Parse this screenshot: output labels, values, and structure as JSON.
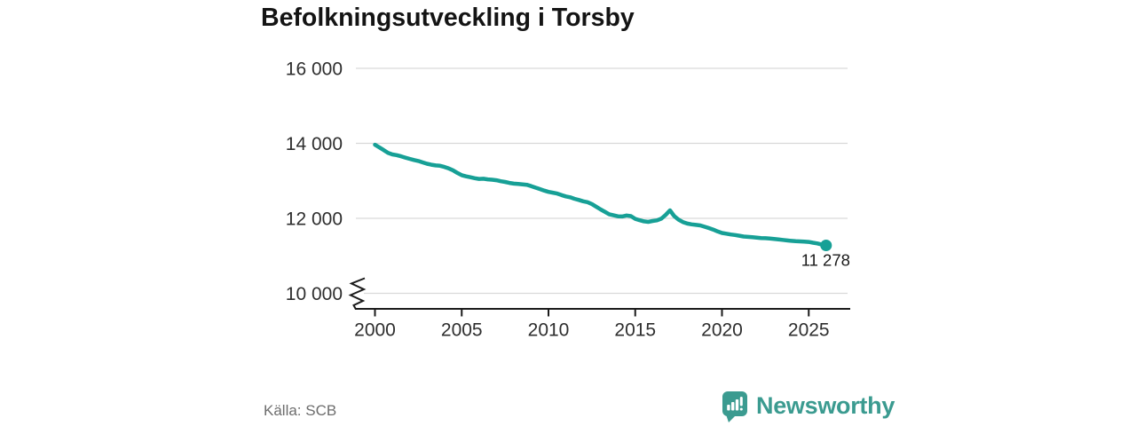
{
  "page": {
    "title": "Befolkningsutveckling i Torsby"
  },
  "chart_data": {
    "type": "line",
    "title": "Befolkningsutveckling i Torsby",
    "xlabel": "",
    "ylabel": "",
    "ylim": [
      10000,
      16000
    ],
    "xlim": [
      1998.9,
      2027.4
    ],
    "y_axis_break": true,
    "grid": "horizontal",
    "legend": "none",
    "line_color": "#17a096",
    "x_ticks": [
      {
        "value": 2000,
        "label": "2000"
      },
      {
        "value": 2005,
        "label": "2005"
      },
      {
        "value": 2010,
        "label": "2010"
      },
      {
        "value": 2015,
        "label": "2015"
      },
      {
        "value": 2020,
        "label": "2020"
      },
      {
        "value": 2025,
        "label": "2025"
      }
    ],
    "y_ticks": [
      {
        "value": 16000,
        "label": "16 000"
      },
      {
        "value": 14000,
        "label": "14 000"
      },
      {
        "value": 12000,
        "label": "12 000"
      },
      {
        "value": 10000,
        "label": "10 000"
      }
    ],
    "x": [
      2000,
      2000.25,
      2000.5,
      2000.75,
      2001,
      2001.25,
      2001.5,
      2001.75,
      2002,
      2002.25,
      2002.5,
      2002.75,
      2003,
      2003.25,
      2003.5,
      2003.75,
      2004,
      2004.25,
      2004.5,
      2004.75,
      2005,
      2005.25,
      2005.5,
      2005.75,
      2006,
      2006.25,
      2006.5,
      2006.75,
      2007,
      2007.25,
      2007.5,
      2007.75,
      2008,
      2008.25,
      2008.5,
      2008.75,
      2009,
      2009.25,
      2009.5,
      2009.75,
      2010,
      2010.25,
      2010.5,
      2010.75,
      2011,
      2011.25,
      2011.5,
      2011.75,
      2012,
      2012.25,
      2012.5,
      2012.75,
      2013,
      2013.25,
      2013.5,
      2013.75,
      2014,
      2014.25,
      2014.5,
      2014.75,
      2015,
      2015.25,
      2015.5,
      2015.75,
      2016,
      2016.25,
      2016.5,
      2016.75,
      2017,
      2017.25,
      2017.5,
      2017.75,
      2018,
      2018.25,
      2018.5,
      2018.75,
      2019,
      2019.25,
      2019.5,
      2019.75,
      2020,
      2020.25,
      2020.5,
      2020.75,
      2021,
      2021.25,
      2021.5,
      2021.75,
      2022,
      2022.25,
      2022.5,
      2022.75,
      2023,
      2023.25,
      2023.5,
      2023.75,
      2024,
      2024.25,
      2024.5,
      2024.75,
      2025,
      2025.25,
      2025.5,
      2025.75,
      2026
    ],
    "y": [
      13962,
      13890,
      13820,
      13745,
      13705,
      13685,
      13655,
      13620,
      13585,
      13555,
      13530,
      13490,
      13455,
      13430,
      13410,
      13400,
      13370,
      13330,
      13280,
      13210,
      13150,
      13120,
      13095,
      13070,
      13050,
      13055,
      13040,
      13030,
      13015,
      12990,
      12970,
      12945,
      12925,
      12915,
      12905,
      12895,
      12860,
      12820,
      12780,
      12740,
      12705,
      12685,
      12660,
      12620,
      12585,
      12560,
      12520,
      12490,
      12455,
      12430,
      12380,
      12310,
      12240,
      12175,
      12110,
      12080,
      12055,
      12050,
      12075,
      12060,
      11985,
      11950,
      11920,
      11905,
      11930,
      11945,
      11990,
      12090,
      12213,
      12060,
      11965,
      11900,
      11860,
      11840,
      11825,
      11810,
      11775,
      11740,
      11700,
      11650,
      11610,
      11590,
      11570,
      11555,
      11535,
      11515,
      11505,
      11495,
      11485,
      11475,
      11470,
      11460,
      11450,
      11440,
      11425,
      11410,
      11400,
      11390,
      11385,
      11380,
      11370,
      11350,
      11330,
      11300,
      11278
    ],
    "end_point": {
      "x": 2026,
      "value": 11278,
      "label": "11 278"
    }
  },
  "footer": {
    "source": "Källa: SCB",
    "brand": "Newsworthy",
    "brand_color": "#3b9b90"
  }
}
